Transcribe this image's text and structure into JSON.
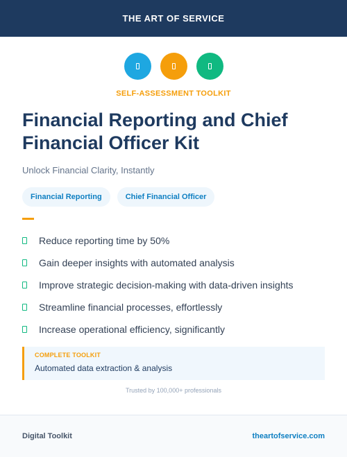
{
  "header": {
    "brand": "THE ART OF SERVICE"
  },
  "icons": [
    {
      "name": "document-icon",
      "color": "#1ea7e1"
    },
    {
      "name": "document-icon",
      "color": "#f59e0b"
    },
    {
      "name": "document-icon",
      "color": "#10b981"
    }
  ],
  "kicker": "SELF-ASSESSMENT TOOLKIT",
  "title": "Financial Reporting and Chief Financial Officer Kit",
  "subtitle": "Unlock Financial Clarity, Instantly",
  "tags": [
    "Financial Reporting",
    "Chief Financial Officer"
  ],
  "benefits": [
    "Reduce reporting time by 50%",
    "Gain deeper insights with automated analysis",
    "Improve strategic decision-making with data-driven insights",
    "Streamline financial processes, effortlessly",
    "Increase operational efficiency, significantly"
  ],
  "callout": {
    "label": "COMPLETE TOOLKIT",
    "text": "Automated data extraction & analysis"
  },
  "trusted": "Trusted by 100,000+ professionals",
  "footer": {
    "left": "Digital Toolkit",
    "right": "theartofservice.com"
  },
  "colors": {
    "navy": "#1e3a5f",
    "accent": "#f59e0b",
    "check": "#10b981",
    "link": "#0e7fc2"
  }
}
